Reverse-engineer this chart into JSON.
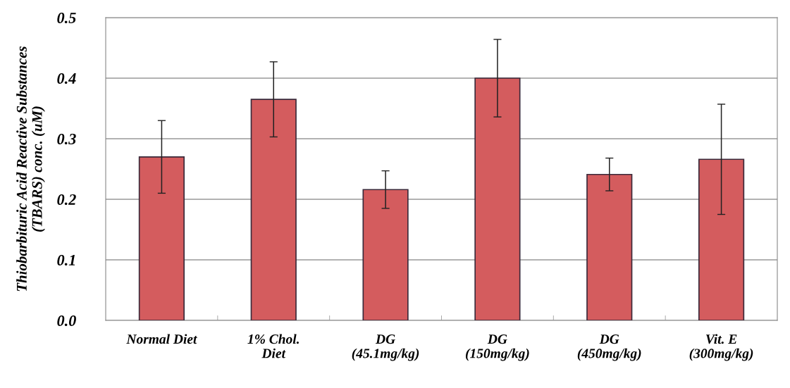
{
  "chart_data": {
    "type": "bar",
    "ylabel": "Thiobarbituric Acid Reactive Substances\n(TBARS) conc. (uM)",
    "categories": [
      "Normal Diet",
      "1% Chol.\nDiet",
      "DG\n(45.1mg/kg)",
      "DG\n(150mg/kg)",
      "DG\n(450mg/kg)",
      "Vit. E\n(300mg/kg)"
    ],
    "values": [
      0.27,
      0.365,
      0.216,
      0.4,
      0.241,
      0.266
    ],
    "errors": [
      0.06,
      0.062,
      0.031,
      0.064,
      0.027,
      0.091
    ],
    "color": "#d45c5e",
    "ylim": [
      0,
      0.5
    ],
    "yticks": [
      {
        "value": 0,
        "label": "0.0"
      },
      0.1,
      0.2,
      0.3,
      0.4,
      0.5
    ],
    "grid": "y"
  }
}
